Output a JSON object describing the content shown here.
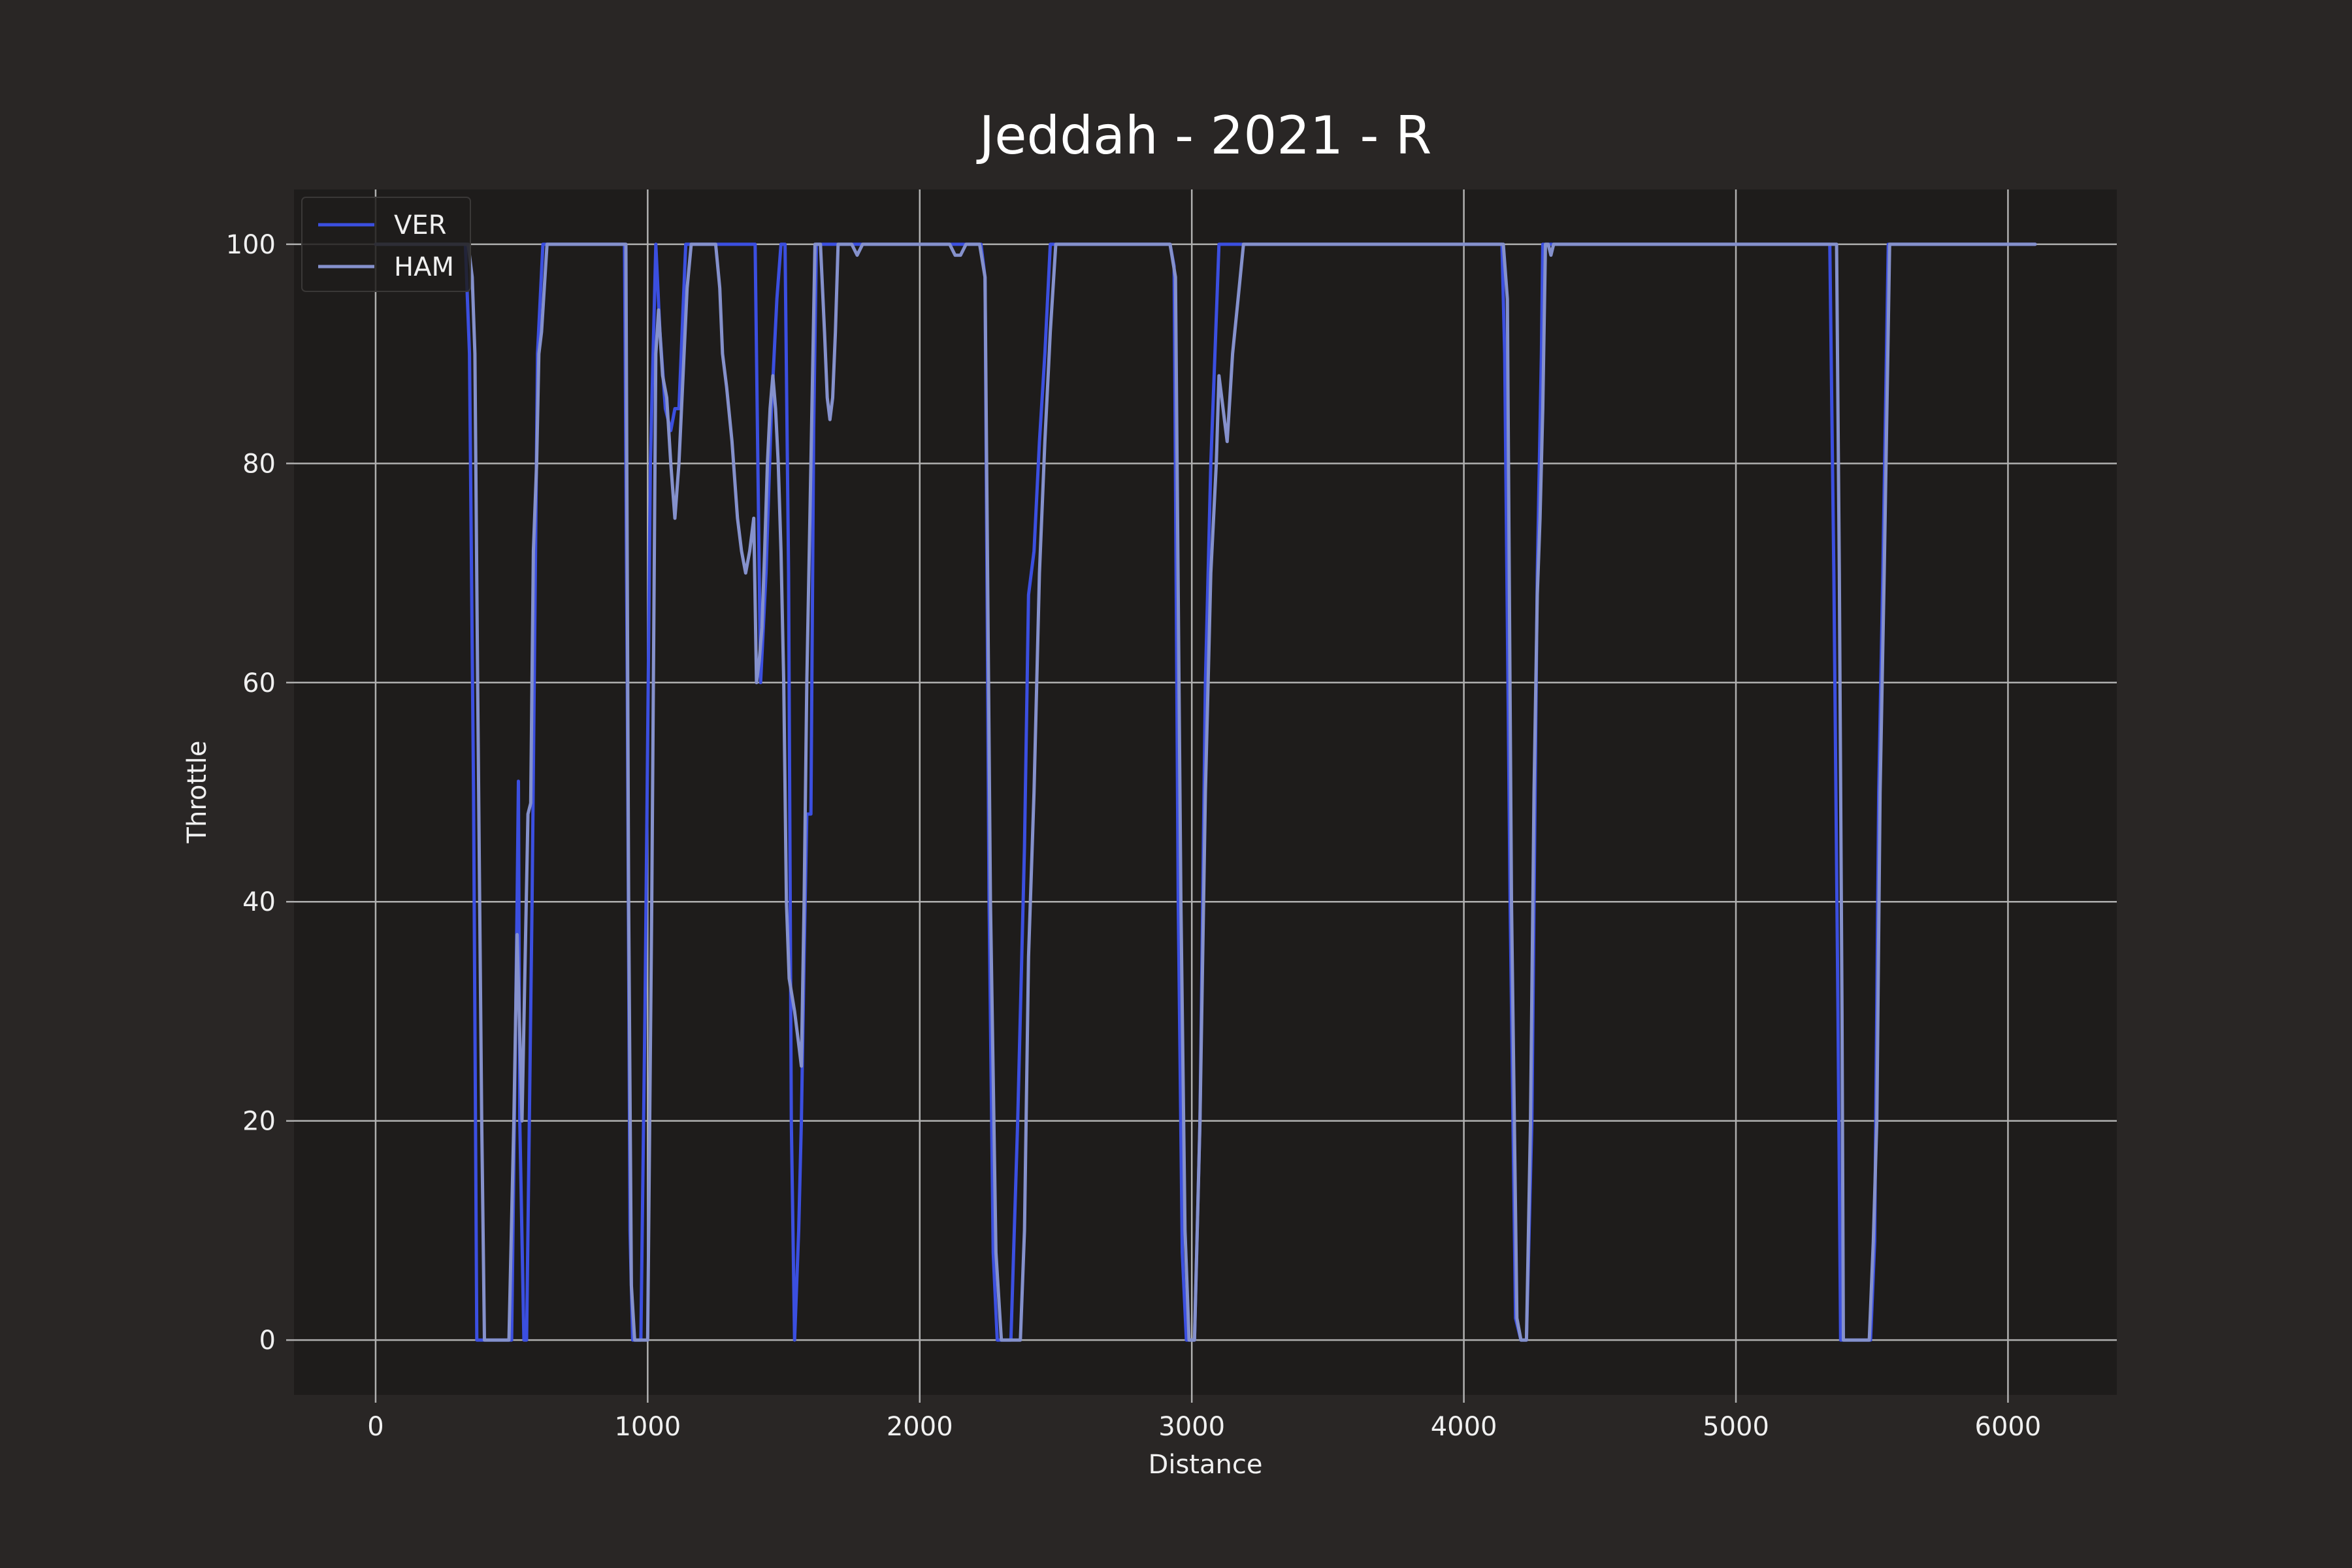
{
  "chart_data": {
    "type": "line",
    "title": "Jeddah - 2021 - R",
    "xlabel": "Distance",
    "ylabel": "Throttle",
    "xlim": [
      -300,
      6400
    ],
    "ylim": [
      -5,
      105
    ],
    "xticks": [
      0,
      1000,
      2000,
      3000,
      4000,
      5000,
      6000
    ],
    "yticks": [
      0,
      20,
      40,
      60,
      80,
      100
    ],
    "grid": true,
    "legend_position": "top-left",
    "colors": {
      "figure_bg": "#292625",
      "plot_bg": "#1e1c1b",
      "grid": "#b0b0b0",
      "text": "#f0f0f0"
    },
    "series": [
      {
        "name": "VER",
        "color": "#3b4fe0",
        "points": [
          [
            0,
            100
          ],
          [
            330,
            100
          ],
          [
            345,
            90
          ],
          [
            360,
            50
          ],
          [
            372,
            0
          ],
          [
            500,
            0
          ],
          [
            520,
            40
          ],
          [
            525,
            51
          ],
          [
            530,
            20
          ],
          [
            545,
            0
          ],
          [
            555,
            0
          ],
          [
            575,
            40
          ],
          [
            595,
            90
          ],
          [
            615,
            100
          ],
          [
            915,
            100
          ],
          [
            925,
            60
          ],
          [
            935,
            10
          ],
          [
            945,
            0
          ],
          [
            975,
            0
          ],
          [
            990,
            30
          ],
          [
            1010,
            80
          ],
          [
            1030,
            100
          ],
          [
            1045,
            92
          ],
          [
            1065,
            85
          ],
          [
            1085,
            83
          ],
          [
            1100,
            85
          ],
          [
            1115,
            85
          ],
          [
            1140,
            100
          ],
          [
            1395,
            100
          ],
          [
            1415,
            60
          ],
          [
            1435,
            70
          ],
          [
            1455,
            85
          ],
          [
            1475,
            95
          ],
          [
            1490,
            100
          ],
          [
            1505,
            100
          ],
          [
            1518,
            70
          ],
          [
            1528,
            20
          ],
          [
            1540,
            0
          ],
          [
            1555,
            10
          ],
          [
            1565,
            20
          ],
          [
            1575,
            35
          ],
          [
            1585,
            48
          ],
          [
            1600,
            48
          ],
          [
            1610,
            83
          ],
          [
            1620,
            100
          ],
          [
            1645,
            100
          ],
          [
            2225,
            100
          ],
          [
            2240,
            97
          ],
          [
            2255,
            40
          ],
          [
            2270,
            8
          ],
          [
            2285,
            0
          ],
          [
            2335,
            0
          ],
          [
            2360,
            20
          ],
          [
            2385,
            45
          ],
          [
            2400,
            68
          ],
          [
            2420,
            72
          ],
          [
            2440,
            82
          ],
          [
            2460,
            90
          ],
          [
            2480,
            100
          ],
          [
            2920,
            100
          ],
          [
            2935,
            98
          ],
          [
            2950,
            40
          ],
          [
            2965,
            8
          ],
          [
            2980,
            0
          ],
          [
            3010,
            0
          ],
          [
            3030,
            20
          ],
          [
            3050,
            60
          ],
          [
            3070,
            80
          ],
          [
            3085,
            90
          ],
          [
            3100,
            100
          ],
          [
            4140,
            100
          ],
          [
            4150,
            90
          ],
          [
            4170,
            40
          ],
          [
            4190,
            2
          ],
          [
            4210,
            0
          ],
          [
            4230,
            0
          ],
          [
            4250,
            20
          ],
          [
            4270,
            70
          ],
          [
            4285,
            90
          ],
          [
            4290,
            100
          ],
          [
            5345,
            100
          ],
          [
            5360,
            70
          ],
          [
            5375,
            30
          ],
          [
            5385,
            0
          ],
          [
            5430,
            0
          ],
          [
            5495,
            0
          ],
          [
            5510,
            9
          ],
          [
            5525,
            50
          ],
          [
            5540,
            70
          ],
          [
            5560,
            100
          ],
          [
            6100,
            100
          ]
        ]
      },
      {
        "name": "HAM",
        "color": "#8591cc",
        "points": [
          [
            0,
            100
          ],
          [
            340,
            100
          ],
          [
            355,
            97
          ],
          [
            365,
            90
          ],
          [
            375,
            60
          ],
          [
            390,
            20
          ],
          [
            400,
            0
          ],
          [
            490,
            0
          ],
          [
            508,
            20
          ],
          [
            520,
            37
          ],
          [
            538,
            20
          ],
          [
            560,
            48
          ],
          [
            570,
            49
          ],
          [
            580,
            72
          ],
          [
            592,
            80
          ],
          [
            600,
            90
          ],
          [
            610,
            92
          ],
          [
            630,
            100
          ],
          [
            920,
            100
          ],
          [
            930,
            40
          ],
          [
            940,
            5
          ],
          [
            952,
            0
          ],
          [
            1000,
            0
          ],
          [
            1015,
            40
          ],
          [
            1030,
            90
          ],
          [
            1040,
            94
          ],
          [
            1055,
            88
          ],
          [
            1070,
            86
          ],
          [
            1085,
            80
          ],
          [
            1100,
            75
          ],
          [
            1115,
            80
          ],
          [
            1130,
            88
          ],
          [
            1145,
            96
          ],
          [
            1160,
            100
          ],
          [
            1250,
            100
          ],
          [
            1265,
            96
          ],
          [
            1275,
            90
          ],
          [
            1290,
            87
          ],
          [
            1310,
            82
          ],
          [
            1330,
            75
          ],
          [
            1345,
            72
          ],
          [
            1360,
            70
          ],
          [
            1375,
            72
          ],
          [
            1390,
            75
          ],
          [
            1400,
            60
          ],
          [
            1410,
            62
          ],
          [
            1420,
            65
          ],
          [
            1430,
            72
          ],
          [
            1440,
            80
          ],
          [
            1450,
            85
          ],
          [
            1460,
            88
          ],
          [
            1470,
            85
          ],
          [
            1480,
            80
          ],
          [
            1490,
            72
          ],
          [
            1500,
            60
          ],
          [
            1510,
            40
          ],
          [
            1520,
            33
          ],
          [
            1540,
            30
          ],
          [
            1555,
            27
          ],
          [
            1565,
            25
          ],
          [
            1575,
            40
          ],
          [
            1585,
            60
          ],
          [
            1600,
            80
          ],
          [
            1615,
            100
          ],
          [
            1635,
            100
          ],
          [
            1650,
            92
          ],
          [
            1660,
            86
          ],
          [
            1670,
            84
          ],
          [
            1680,
            86
          ],
          [
            1690,
            92
          ],
          [
            1700,
            100
          ],
          [
            1750,
            100
          ],
          [
            1770,
            99
          ],
          [
            1790,
            100
          ],
          [
            2110,
            100
          ],
          [
            2130,
            99
          ],
          [
            2150,
            99
          ],
          [
            2170,
            100
          ],
          [
            2220,
            100
          ],
          [
            2240,
            97
          ],
          [
            2260,
            40
          ],
          [
            2280,
            8
          ],
          [
            2300,
            0
          ],
          [
            2370,
            0
          ],
          [
            2385,
            10
          ],
          [
            2400,
            35
          ],
          [
            2420,
            50
          ],
          [
            2440,
            70
          ],
          [
            2460,
            82
          ],
          [
            2480,
            92
          ],
          [
            2500,
            100
          ],
          [
            2920,
            100
          ],
          [
            2940,
            97
          ],
          [
            2960,
            40
          ],
          [
            2975,
            10
          ],
          [
            2990,
            0
          ],
          [
            3010,
            0
          ],
          [
            3030,
            20
          ],
          [
            3050,
            50
          ],
          [
            3070,
            70
          ],
          [
            3090,
            80
          ],
          [
            3100,
            88
          ],
          [
            3110,
            86
          ],
          [
            3120,
            84
          ],
          [
            3130,
            82
          ],
          [
            3140,
            86
          ],
          [
            3150,
            90
          ],
          [
            3170,
            95
          ],
          [
            3190,
            100
          ],
          [
            4145,
            100
          ],
          [
            4160,
            95
          ],
          [
            4175,
            40
          ],
          [
            4195,
            2
          ],
          [
            4210,
            0
          ],
          [
            4230,
            0
          ],
          [
            4245,
            20
          ],
          [
            4258,
            50
          ],
          [
            4270,
            68
          ],
          [
            4280,
            75
          ],
          [
            4290,
            85
          ],
          [
            4300,
            100
          ],
          [
            4310,
            100
          ],
          [
            4320,
            99
          ],
          [
            4330,
            100
          ],
          [
            5370,
            100
          ],
          [
            5380,
            70
          ],
          [
            5390,
            30
          ],
          [
            5395,
            0
          ],
          [
            5450,
            0
          ],
          [
            5490,
            0
          ],
          [
            5505,
            9
          ],
          [
            5518,
            20
          ],
          [
            5530,
            50
          ],
          [
            5545,
            70
          ],
          [
            5565,
            100
          ],
          [
            6100,
            100
          ]
        ]
      }
    ]
  }
}
